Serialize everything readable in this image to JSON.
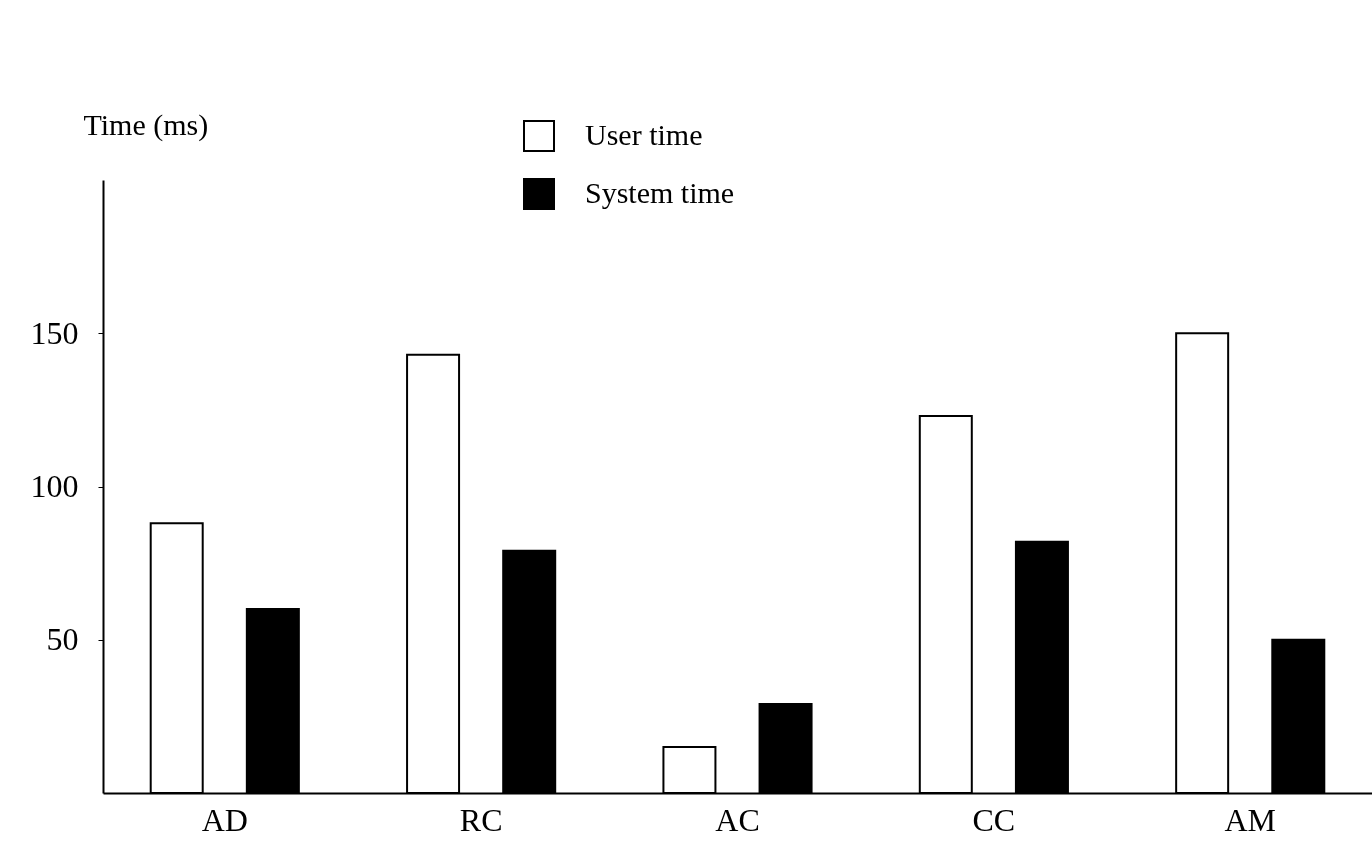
{
  "chart_data": {
    "type": "bar",
    "ylabel": "Time (ms)",
    "categories": [
      "AD",
      "RC",
      "AC",
      "CC",
      "AM"
    ],
    "series": [
      {
        "name": "User time",
        "color": "#ffffff",
        "values": [
          88,
          143,
          15,
          123,
          150
        ]
      },
      {
        "name": "System time",
        "color": "#000000",
        "values": [
          60,
          79,
          29,
          82,
          50
        ]
      }
    ],
    "ylim": [
      0,
      200
    ],
    "yticks": [
      50,
      100,
      150
    ],
    "grid": false,
    "legend": "top"
  }
}
